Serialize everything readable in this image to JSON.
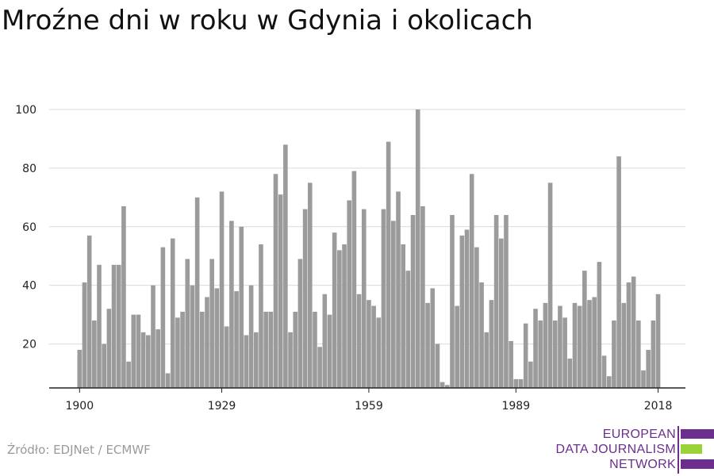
{
  "title": "Mroźne dni w roku w Gdynia i okolicach",
  "source": "Źródło: EDJNet / ECMWF",
  "logo": {
    "lines": [
      "EUROPEAN",
      "DATA JOURNALISM",
      "NETWORK"
    ],
    "colors": {
      "purple": "#6b2e8f",
      "green": "#9bd23a"
    }
  },
  "colors": {
    "bar": "#9b9b9b",
    "grid": "#d9d9d9",
    "axis": "#222222",
    "text": "#222222"
  },
  "chart_data": {
    "type": "bar",
    "title": "Mroźne dni w roku w Gdynia i okolicach",
    "xlabel": "",
    "ylabel": "",
    "x_start": 1900,
    "x_end": 2018,
    "xticks": [
      1900,
      1929,
      1959,
      1989,
      2018
    ],
    "yticks": [
      20,
      40,
      60,
      80,
      100
    ],
    "ylim": [
      5,
      100
    ],
    "grid": true,
    "values": [
      18,
      41,
      57,
      28,
      47,
      20,
      32,
      47,
      47,
      67,
      14,
      30,
      30,
      24,
      23,
      40,
      25,
      53,
      10,
      56,
      29,
      31,
      49,
      40,
      70,
      31,
      36,
      49,
      39,
      72,
      26,
      62,
      38,
      60,
      23,
      40,
      24,
      54,
      31,
      31,
      78,
      71,
      88,
      24,
      31,
      49,
      66,
      75,
      31,
      19,
      37,
      30,
      58,
      52,
      54,
      69,
      79,
      37,
      66,
      35,
      33,
      29,
      66,
      89,
      62,
      72,
      54,
      45,
      64,
      100,
      67,
      34,
      39,
      20,
      7,
      6,
      64,
      33,
      57,
      59,
      78,
      53,
      41,
      24,
      35,
      64,
      56,
      64,
      21,
      8,
      8,
      27,
      14,
      32,
      28,
      34,
      75,
      28,
      33,
      29,
      15,
      34,
      33,
      45,
      35,
      36,
      48,
      16,
      9,
      28,
      84,
      34,
      41,
      43,
      28,
      11,
      18,
      28,
      37
    ]
  }
}
